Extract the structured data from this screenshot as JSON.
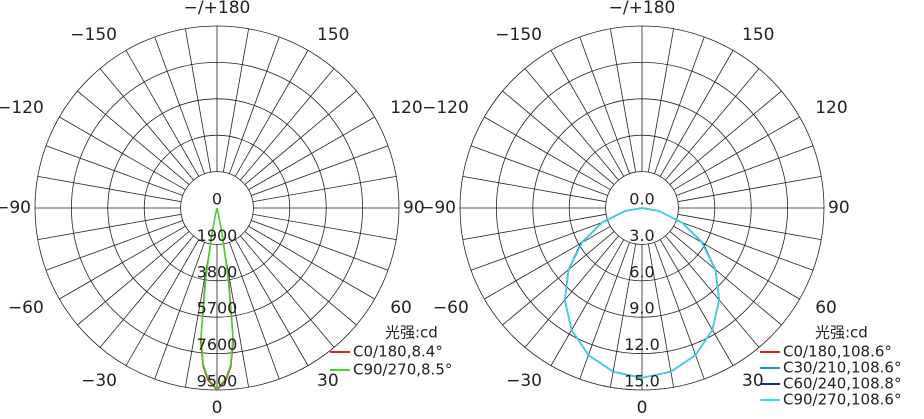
{
  "chart_data": [
    {
      "type": "polar",
      "legend_title": "光强:cd",
      "x": [
        -20,
        -13,
        -11,
        -9,
        -7,
        -5,
        -3,
        0,
        3,
        5,
        7,
        9,
        11,
        13,
        20
      ],
      "series": [
        {
          "name": "C0/180,8.4°",
          "color": "#e8231f",
          "values": [
            0,
            400,
            1500,
            4000,
            7000,
            8300,
            9000,
            9500,
            9000,
            8300,
            7000,
            4000,
            1500,
            400,
            0
          ]
        },
        {
          "name": "C90/270,8.5°",
          "color": "#3ddc2a",
          "values": [
            0,
            300,
            1300,
            3700,
            6800,
            8200,
            8900,
            9450,
            8900,
            8200,
            6800,
            3700,
            1300,
            300,
            0
          ]
        }
      ],
      "rlim": [
        0,
        9500
      ],
      "rticks": [
        0,
        1900,
        3800,
        5700,
        7600,
        9500
      ],
      "thetaticks": [
        {
          "value": 180,
          "label": "−/+180"
        },
        {
          "value": -150,
          "label": "−150"
        },
        150,
        {
          "value": -120,
          "label": "−120"
        },
        120,
        {
          "value": -90,
          "label": "−90"
        },
        90,
        {
          "value": -60,
          "label": "−60"
        },
        60,
        {
          "value": -30,
          "label": "−30"
        },
        30,
        0
      ]
    },
    {
      "type": "polar",
      "legend_title": "光强:cd",
      "x": [
        -90,
        -80,
        -70,
        -60,
        -50,
        -40,
        -30,
        -20,
        -10,
        0,
        10,
        20,
        30,
        40,
        50,
        60,
        70,
        80,
        90
      ],
      "series": [
        {
          "name": "C0/180,108.6°",
          "color": "#e02020",
          "values": [
            0,
            1.4,
            3.5,
            5.7,
            7.9,
            9.9,
            11.6,
            12.9,
            13.7,
            14.0,
            13.7,
            12.9,
            11.6,
            9.9,
            7.9,
            5.7,
            3.5,
            1.4,
            0
          ]
        },
        {
          "name": "C30/210,108.6°",
          "color": "#2090d0",
          "values": [
            0,
            1.4,
            3.5,
            5.7,
            7.9,
            9.9,
            11.6,
            12.9,
            13.7,
            14.0,
            13.7,
            12.9,
            11.6,
            9.9,
            7.9,
            5.7,
            3.5,
            1.4,
            0
          ]
        },
        {
          "name": "C60/240,108.8°",
          "color": "#1428b4",
          "values": [
            0,
            1.4,
            3.5,
            5.8,
            7.9,
            9.9,
            11.6,
            12.9,
            13.7,
            14.0,
            13.7,
            12.9,
            11.6,
            9.9,
            7.9,
            5.8,
            3.5,
            1.4,
            0
          ]
        },
        {
          "name": "C90/270,108.6°",
          "color": "#30e0e8",
          "values": [
            0,
            1.4,
            3.5,
            5.7,
            7.9,
            9.9,
            11.6,
            12.9,
            13.7,
            14.0,
            13.7,
            12.9,
            11.6,
            9.9,
            7.9,
            5.7,
            3.5,
            1.4,
            0
          ]
        }
      ],
      "rlim": [
        0,
        15
      ],
      "rticks": [
        {
          "value": 0,
          "label": "0.0"
        },
        {
          "value": 3,
          "label": "3.0"
        },
        {
          "value": 6,
          "label": "6.0"
        },
        {
          "value": 9,
          "label": "9.0"
        },
        {
          "value": 12,
          "label": "12.0"
        },
        {
          "value": 15,
          "label": "15.0"
        }
      ],
      "thetaticks": [
        {
          "value": 180,
          "label": "−/+180"
        },
        {
          "value": -150,
          "label": "−150"
        },
        150,
        {
          "value": -120,
          "label": "−120"
        },
        120,
        {
          "value": -90,
          "label": "−90"
        },
        90,
        {
          "value": -60,
          "label": "−60"
        },
        60,
        {
          "value": -30,
          "label": "−30"
        },
        30,
        0
      ]
    }
  ]
}
